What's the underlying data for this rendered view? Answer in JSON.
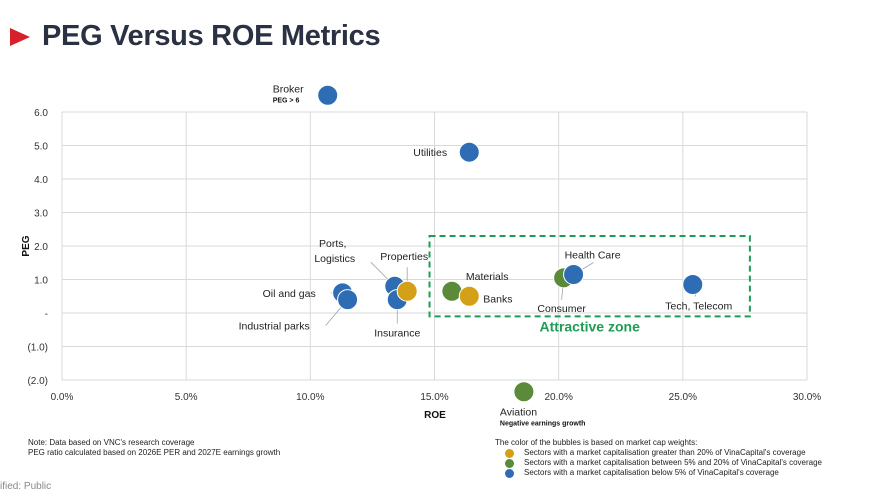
{
  "header": {
    "title": "PEG Versus ROE Metrics",
    "accent_color": "#d6202a"
  },
  "chart_data": {
    "type": "scatter",
    "title": "PEG Versus ROE Metrics",
    "xlabel": "ROE",
    "ylabel": "PEG",
    "xlim": [
      0,
      30
    ],
    "ylim": [
      -2,
      6
    ],
    "grid": true,
    "x_ticks": [
      {
        "value": 0,
        "label": "0.0%"
      },
      {
        "value": 5,
        "label": "5.0%"
      },
      {
        "value": 10,
        "label": "10.0%"
      },
      {
        "value": 15,
        "label": "15.0%"
      },
      {
        "value": 20,
        "label": "20.0%"
      },
      {
        "value": 25,
        "label": "25.0%"
      },
      {
        "value": 30,
        "label": "30.0%"
      }
    ],
    "y_ticks": [
      {
        "value": 6,
        "label": "6.0"
      },
      {
        "value": 5,
        "label": "5.0"
      },
      {
        "value": 4,
        "label": "4.0"
      },
      {
        "value": 3,
        "label": "3.0"
      },
      {
        "value": 2,
        "label": "2.0"
      },
      {
        "value": 1,
        "label": "1.0"
      },
      {
        "value": 0,
        "label": "-"
      },
      {
        "value": -1,
        "label": "(1.0)"
      },
      {
        "value": -2,
        "label": "(2.0)"
      }
    ],
    "colors": {
      "large": "#d4a017",
      "mid": "#5b8a3a",
      "small": "#2e6db4"
    },
    "points": [
      {
        "name": "Broker",
        "sublabel": "PEG > 6",
        "roe": 10.7,
        "peg": 6.5,
        "group": "small"
      },
      {
        "name": "Utilities",
        "roe": 16.4,
        "peg": 4.8,
        "group": "small"
      },
      {
        "name": "Oil and gas",
        "roe": 11.3,
        "peg": 0.6,
        "group": "small"
      },
      {
        "name": "Industrial parks",
        "roe": 11.5,
        "peg": 0.4,
        "group": "small"
      },
      {
        "name": "Ports, Logistics",
        "roe": 13.4,
        "peg": 0.8,
        "group": "small"
      },
      {
        "name": "Insurance",
        "roe": 13.5,
        "peg": 0.4,
        "group": "small"
      },
      {
        "name": "Properties",
        "roe": 13.9,
        "peg": 0.65,
        "group": "large"
      },
      {
        "name": "Materials",
        "roe": 15.7,
        "peg": 0.65,
        "group": "mid"
      },
      {
        "name": "Banks",
        "roe": 16.4,
        "peg": 0.5,
        "group": "large"
      },
      {
        "name": "Consumer",
        "roe": 20.2,
        "peg": 1.05,
        "group": "mid"
      },
      {
        "name": "Health Care",
        "roe": 20.6,
        "peg": 1.15,
        "group": "small"
      },
      {
        "name": "Tech, Telecom",
        "roe": 25.4,
        "peg": 0.85,
        "group": "small"
      },
      {
        "name": "Aviation",
        "sublabel": "Negative earnings growth",
        "roe": 18.6,
        "peg": -2.35,
        "group": "mid"
      }
    ],
    "annotations": [
      {
        "text": "Attractive zone",
        "x_range": [
          14.8,
          27.7
        ],
        "y_range": [
          -0.1,
          2.3
        ],
        "color": "#1e9d55"
      }
    ]
  },
  "notes": {
    "line1": "Note: Data based on VNC's research coverage",
    "line2": "PEG ratio calculated based on 2026E PER and 2027E earnings growth"
  },
  "legend": {
    "title": "The color of the bubbles is based on market cap weights:",
    "items": [
      {
        "label": "Sectors with a market capitalisation greater than 20% of VinaCapital's coverage",
        "color": "#d4a017"
      },
      {
        "label": "Sectors with a market capitalisation between 5% and 20% of VinaCapital's coverage",
        "color": "#5b8a3a"
      },
      {
        "label": "Sectors with a market capitalisation below 5% of VinaCapital's coverage",
        "color": "#2e6db4"
      }
    ]
  },
  "footer": {
    "classification": "ified: Public"
  }
}
